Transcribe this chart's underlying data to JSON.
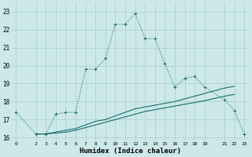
{
  "title": "",
  "xlabel": "Humidex (Indice chaleur)",
  "bg_color": "#cce8e8",
  "line_color": "#1a6e6e",
  "grid_color": "#aacccc",
  "xlim": [
    -0.5,
    23.5
  ],
  "ylim": [
    15.8,
    23.5
  ],
  "yticks": [
    16,
    17,
    18,
    19,
    20,
    21,
    22,
    23
  ],
  "xticks": [
    0,
    2,
    3,
    4,
    5,
    6,
    7,
    8,
    9,
    10,
    11,
    12,
    13,
    14,
    15,
    16,
    17,
    18,
    19,
    21,
    22,
    23
  ],
  "line1_x": [
    0,
    2,
    3,
    4,
    5,
    6,
    7,
    8,
    9,
    10,
    11,
    12,
    13,
    14,
    15,
    16,
    17,
    18,
    19,
    21,
    22,
    23
  ],
  "line1_y": [
    17.4,
    16.2,
    16.2,
    17.3,
    17.4,
    17.4,
    19.8,
    19.8,
    20.4,
    22.3,
    22.3,
    22.9,
    21.5,
    21.5,
    20.1,
    18.8,
    19.3,
    19.4,
    18.8,
    18.1,
    17.5,
    16.2
  ],
  "line2_x": [
    2,
    3,
    4,
    5,
    6,
    7,
    8,
    9,
    10,
    11,
    12,
    13,
    14,
    15,
    16,
    17,
    18,
    19,
    21,
    22
  ],
  "line2_y": [
    16.2,
    16.2,
    16.3,
    16.4,
    16.5,
    16.7,
    16.9,
    17.0,
    17.2,
    17.4,
    17.6,
    17.7,
    17.8,
    17.9,
    18.0,
    18.15,
    18.3,
    18.45,
    18.75,
    18.85
  ],
  "line3_x": [
    2,
    3,
    4,
    5,
    6,
    7,
    8,
    9,
    10,
    11,
    12,
    13,
    14,
    15,
    16,
    17,
    18,
    19,
    21,
    22
  ],
  "line3_y": [
    16.2,
    16.2,
    16.25,
    16.3,
    16.4,
    16.55,
    16.7,
    16.85,
    17.0,
    17.15,
    17.3,
    17.45,
    17.55,
    17.65,
    17.75,
    17.85,
    17.95,
    18.05,
    18.3,
    18.4
  ]
}
